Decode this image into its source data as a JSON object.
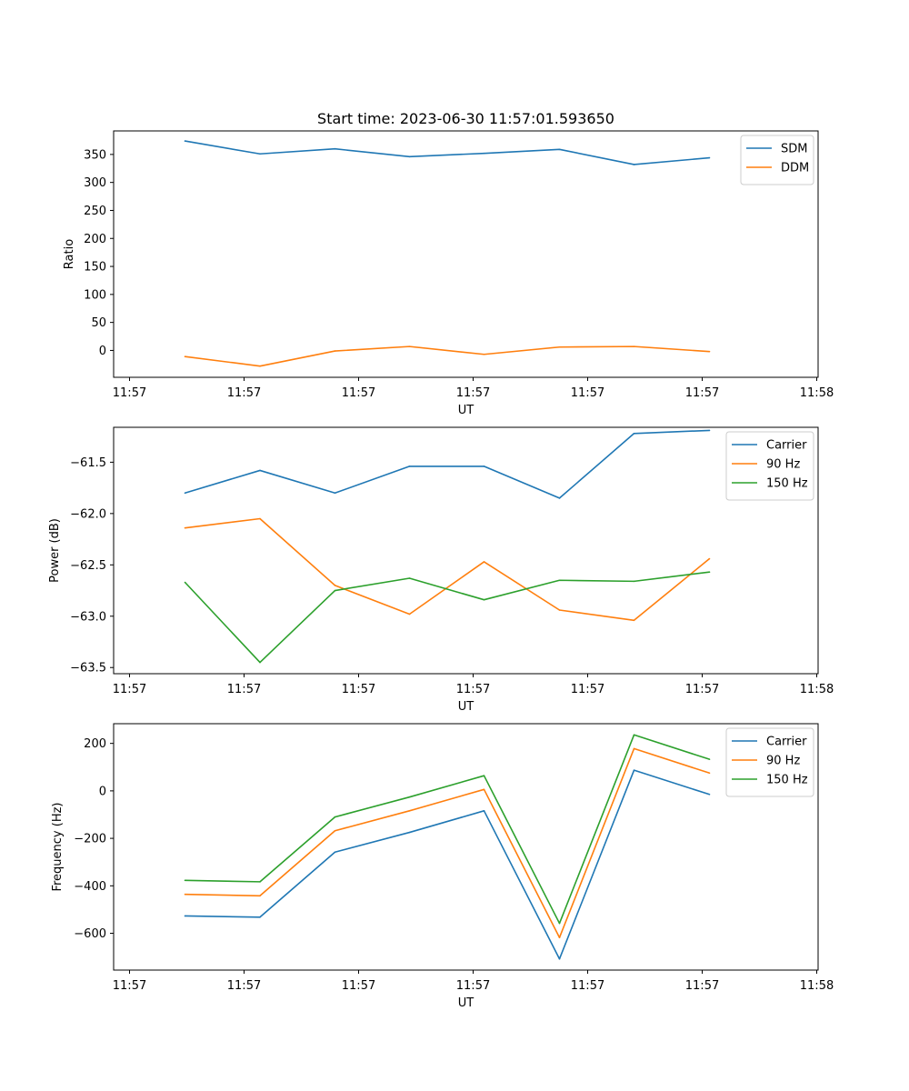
{
  "figure_title": "Start time: 2023-06-30 11:57:01.593650",
  "colors": {
    "blue": "#1f77b4",
    "orange": "#ff7f0e",
    "green": "#2ca02c"
  },
  "chart_data": [
    {
      "type": "line",
      "title": "Start time: 2023-06-30 11:57:01.593650",
      "xlabel": "UT",
      "ylabel": "Ratio",
      "x_tick_labels": [
        "11:57",
        "11:57",
        "11:57",
        "11:57",
        "11:57",
        "11:57",
        "11:58"
      ],
      "y_ticks": [
        0,
        50,
        100,
        150,
        200,
        250,
        300,
        350
      ],
      "ylim": [
        -48,
        392
      ],
      "grid": false,
      "legend": "top-right",
      "series": [
        {
          "name": "SDM",
          "color": "#1f77b4",
          "values": [
            374,
            351,
            360,
            346,
            352,
            359,
            332,
            344
          ]
        },
        {
          "name": "DDM",
          "color": "#ff7f0e",
          "values": [
            -11,
            -28,
            -1,
            7,
            -7,
            6,
            7,
            -2
          ]
        }
      ]
    },
    {
      "type": "line",
      "title": "",
      "xlabel": "UT",
      "ylabel": "Power (dB)",
      "x_tick_labels": [
        "11:57",
        "11:57",
        "11:57",
        "11:57",
        "11:57",
        "11:57",
        "11:58"
      ],
      "y_ticks": [
        -63.5,
        -63.0,
        -62.5,
        -62.0,
        -61.5
      ],
      "y_tick_labels": [
        "−63.5",
        "−63.0",
        "−62.5",
        "−62.0",
        "−61.5"
      ],
      "ylim": [
        -63.56,
        -61.16
      ],
      "grid": false,
      "legend": "top-right",
      "series": [
        {
          "name": "Carrier",
          "color": "#1f77b4",
          "values": [
            -61.8,
            -61.58,
            -61.8,
            -61.54,
            -61.54,
            -61.85,
            -61.22,
            -61.19
          ]
        },
        {
          "name": "90 Hz",
          "color": "#ff7f0e",
          "values": [
            -62.14,
            -62.05,
            -62.7,
            -62.98,
            -62.47,
            -62.94,
            -63.04,
            -62.44
          ]
        },
        {
          "name": "150 Hz",
          "color": "#2ca02c",
          "values": [
            -62.67,
            -63.45,
            -62.75,
            -62.63,
            -62.84,
            -62.65,
            -62.66,
            -62.57
          ]
        }
      ]
    },
    {
      "type": "line",
      "title": "",
      "xlabel": "UT",
      "ylabel": "Frequency (Hz)",
      "x_tick_labels": [
        "11:57",
        "11:57",
        "11:57",
        "11:57",
        "11:57",
        "11:57",
        "11:58"
      ],
      "y_ticks": [
        -600,
        -400,
        -200,
        0,
        200
      ],
      "y_tick_labels": [
        "−600",
        "−400",
        "−200",
        "0",
        "200"
      ],
      "ylim": [
        -755,
        283
      ],
      "grid": false,
      "legend": "top-right",
      "series": [
        {
          "name": "Carrier",
          "color": "#1f77b4",
          "values": [
            -527,
            -532,
            -258,
            -175,
            -84,
            -708,
            87,
            -15
          ]
        },
        {
          "name": "90 Hz",
          "color": "#ff7f0e",
          "values": [
            -436,
            -442,
            -168,
            -84,
            6,
            -618,
            178,
            75
          ]
        },
        {
          "name": "150 Hz",
          "color": "#2ca02c",
          "values": [
            -377,
            -383,
            -110,
            -26,
            64,
            -558,
            236,
            133
          ]
        }
      ]
    }
  ]
}
